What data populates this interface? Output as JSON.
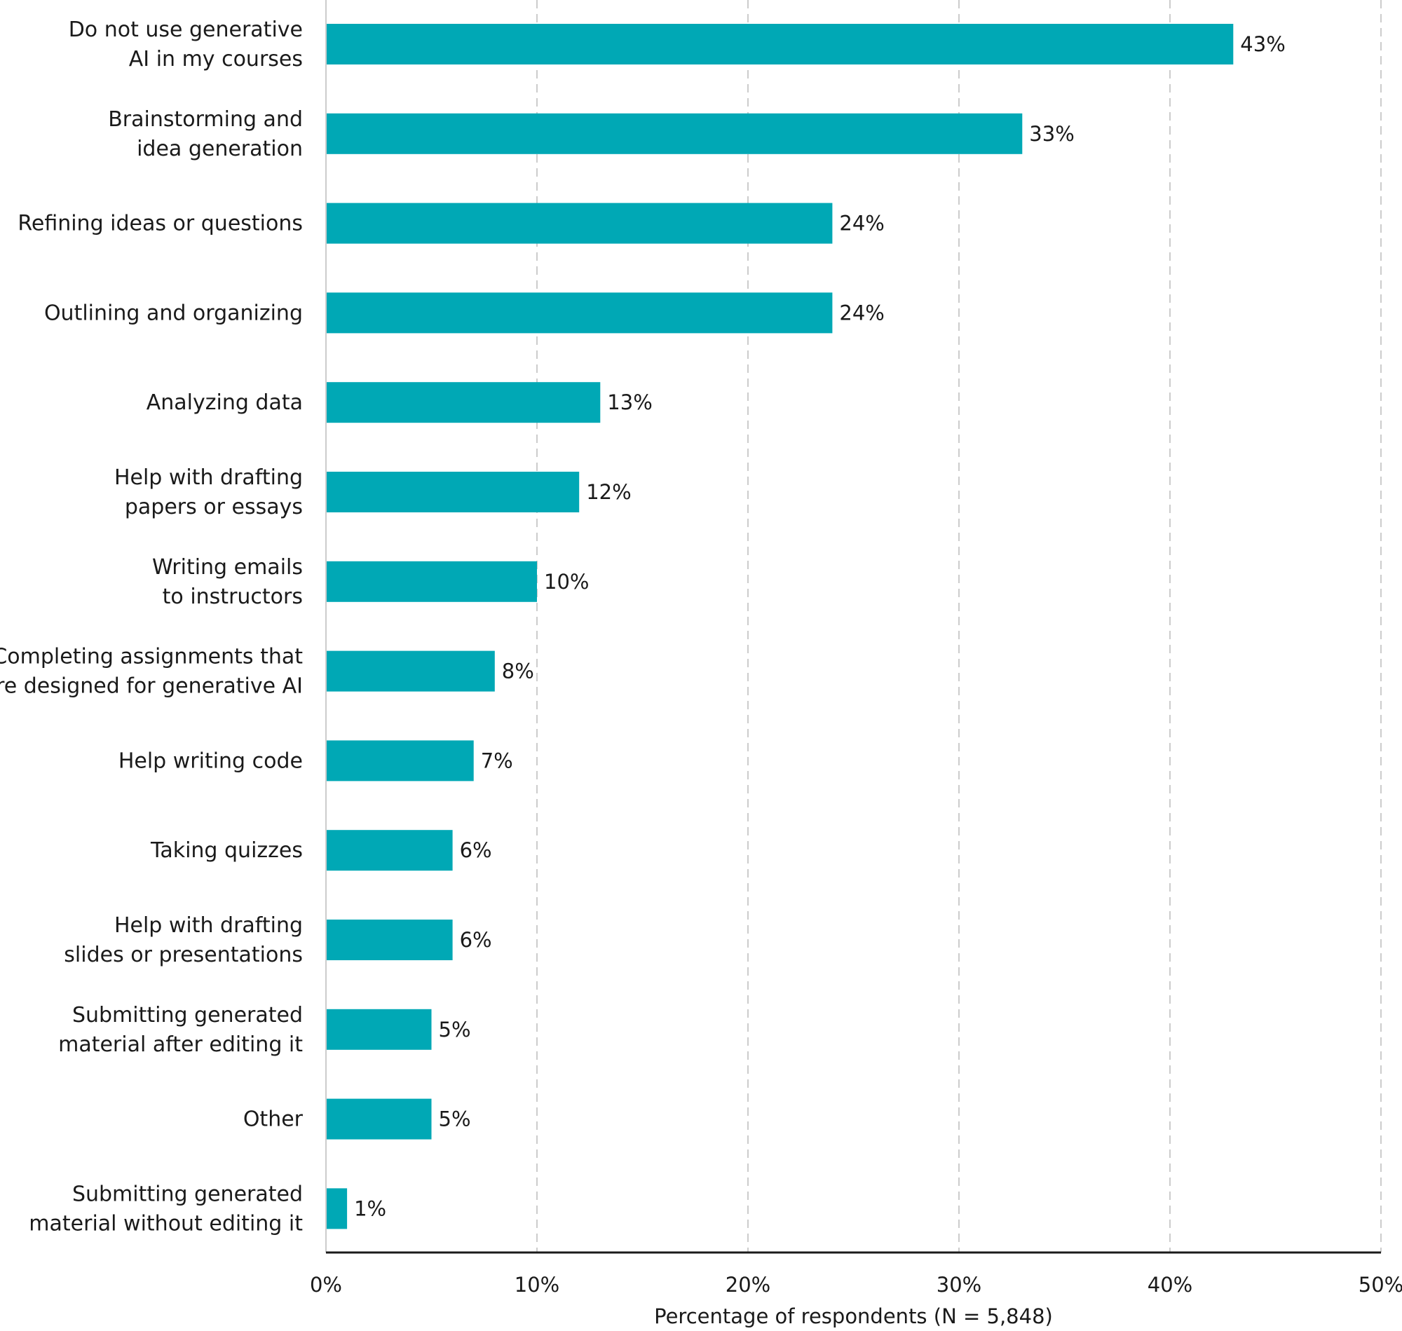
{
  "chart_data": {
    "type": "bar",
    "orientation": "horizontal",
    "categories": [
      [
        "Do not use generative",
        "AI in my courses"
      ],
      [
        "Brainstorming and",
        "idea generation"
      ],
      [
        "Refining ideas or questions"
      ],
      [
        "Outlining and organizing"
      ],
      [
        "Analyzing data"
      ],
      [
        "Help with drafting",
        "papers or essays"
      ],
      [
        "Writing emails",
        "to instructors"
      ],
      [
        "Completing assignments that",
        "are designed for generative AI"
      ],
      [
        "Help writing code"
      ],
      [
        "Taking quizzes"
      ],
      [
        "Help with drafting",
        "slides or presentations"
      ],
      [
        "Submitting generated",
        "material after editing it"
      ],
      [
        "Other"
      ],
      [
        "Submitting generated",
        "material without editing it"
      ]
    ],
    "values": [
      43,
      33,
      24,
      24,
      13,
      12,
      10,
      8,
      7,
      6,
      6,
      5,
      5,
      1
    ],
    "value_labels": [
      "43%",
      "33%",
      "24%",
      "24%",
      "13%",
      "12%",
      "10%",
      "8%",
      "7%",
      "6%",
      "6%",
      "5%",
      "5%",
      "1%"
    ],
    "xlim": [
      0,
      50
    ],
    "x_ticks": [
      0,
      10,
      20,
      30,
      40,
      50
    ],
    "x_tick_labels": [
      "0%",
      "10%",
      "20%",
      "30%",
      "40%",
      "50%"
    ],
    "xlabel": "Percentage of respondents (N = 5,848)",
    "title": "",
    "grid": "vertical dashed",
    "bar_color": "#00a8b5",
    "grid_color": "#cccccc",
    "axis_color": "#1a1a1a"
  }
}
